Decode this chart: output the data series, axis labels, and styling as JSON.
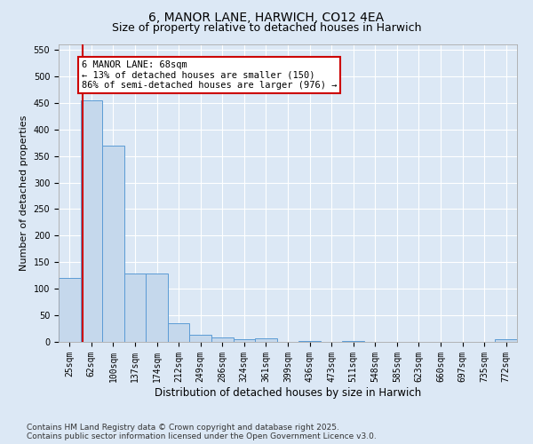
{
  "title": "6, MANOR LANE, HARWICH, CO12 4EA",
  "subtitle": "Size of property relative to detached houses in Harwich",
  "xlabel": "Distribution of detached houses by size in Harwich",
  "ylabel": "Number of detached properties",
  "categories": [
    "25sqm",
    "62sqm",
    "100sqm",
    "137sqm",
    "174sqm",
    "212sqm",
    "249sqm",
    "286sqm",
    "324sqm",
    "361sqm",
    "399sqm",
    "436sqm",
    "473sqm",
    "511sqm",
    "548sqm",
    "585sqm",
    "623sqm",
    "660sqm",
    "697sqm",
    "735sqm",
    "772sqm"
  ],
  "values": [
    120,
    455,
    370,
    128,
    128,
    35,
    14,
    9,
    5,
    6,
    0,
    2,
    0,
    2,
    0,
    0,
    0,
    0,
    0,
    0,
    5
  ],
  "bar_color": "#c5d8ec",
  "bar_edge_color": "#5b9bd5",
  "vline_color": "#cc0000",
  "vline_position": 0.6,
  "annotation_text": "6 MANOR LANE: 68sqm\n← 13% of detached houses are smaller (150)\n86% of semi-detached houses are larger (976) →",
  "annotation_box_color": "#cc0000",
  "annotation_bg_color": "#ffffff",
  "ylim": [
    0,
    560
  ],
  "yticks": [
    0,
    50,
    100,
    150,
    200,
    250,
    300,
    350,
    400,
    450,
    500,
    550
  ],
  "footer": "Contains HM Land Registry data © Crown copyright and database right 2025.\nContains public sector information licensed under the Open Government Licence v3.0.",
  "bg_color": "#dce8f5",
  "plot_bg_color": "#dce8f5",
  "grid_color": "#ffffff",
  "title_fontsize": 10,
  "subtitle_fontsize": 9,
  "tick_fontsize": 7,
  "ylabel_fontsize": 8,
  "xlabel_fontsize": 8.5,
  "footer_fontsize": 6.5,
  "annotation_fontsize": 7.5
}
